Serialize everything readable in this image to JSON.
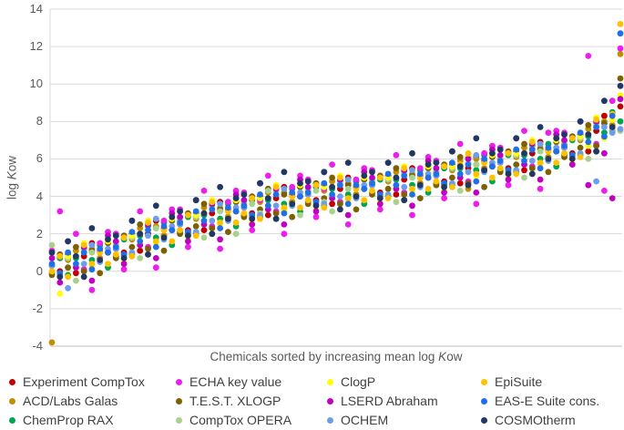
{
  "figure": {
    "ylabel": {
      "prefix": "log ",
      "italic": "K",
      "suffix": "ow"
    },
    "xlabel": {
      "prefix": "Chemicals sorted by increasing mean log ",
      "italic": "K",
      "suffix": "ow"
    }
  },
  "chart_data": {
    "type": "scatter",
    "title": "",
    "xlabel": "Chemicals sorted by increasing mean log Kow",
    "ylabel": "log Kow",
    "ylim": [
      -4,
      14
    ],
    "yticks": [
      14,
      12,
      10,
      8,
      6,
      4,
      2,
      0,
      -2,
      -4
    ],
    "x_count": 72,
    "grid": "horizontal",
    "legend_position": "bottom",
    "legend_ncol": 4,
    "marker": "circle",
    "series": [
      {
        "name": "Experiment CompTox",
        "color": "#C00000",
        "y": [
          0.3,
          0.0,
          0.9,
          -0.1,
          0.8,
          1.5,
          0.7,
          1.0,
          1.2,
          1.0,
          2.0,
          1.1,
          2.0,
          2.7,
          1.9,
          2.2,
          2.5,
          2.2,
          3.1,
          2.2,
          3.1,
          3.7,
          2.9,
          3.2,
          3.4,
          3.1,
          4.0,
          3.0,
          3.9,
          4.5,
          3.7,
          4.0,
          4.1,
          3.8,
          4.6,
          3.6,
          4.4,
          5.0,
          4.1,
          4.4,
          4.6,
          4.2,
          5.1,
          4.1,
          4.9,
          5.5,
          4.7,
          5.0,
          5.1,
          4.8,
          5.7,
          4.7,
          5.5,
          6.1,
          5.4,
          5.6,
          5.8,
          5.5,
          6.4,
          5.4,
          6.3,
          6.9,
          6.1,
          6.4,
          6.6,
          6.3,
          7.3,
          6.4,
          7.5,
          8.3,
          7.8,
          8.8
        ]
      },
      {
        "name": "ACD/Labs Galas",
        "color": "#BF8F00",
        "y": [
          -3.8,
          -0.2,
          0.6,
          1.1,
          -0.3,
          1.2,
          0.7,
          1.0,
          1.4,
          0.8,
          1.7,
          2.3,
          0.9,
          2.4,
          1.9,
          2.2,
          2.7,
          2.0,
          2.8,
          3.4,
          2.0,
          3.4,
          2.9,
          3.2,
          3.6,
          2.9,
          3.7,
          4.2,
          2.8,
          4.2,
          3.7,
          4.0,
          4.3,
          3.6,
          4.3,
          4.8,
          3.3,
          4.7,
          4.1,
          4.4,
          4.8,
          4.0,
          4.8,
          5.3,
          3.8,
          5.2,
          4.7,
          5.0,
          5.3,
          4.6,
          5.4,
          5.9,
          4.4,
          6.0,
          5.5,
          5.6,
          6.0,
          5.3,
          6.1,
          6.6,
          5.2,
          6.6,
          6.1,
          6.4,
          6.8,
          6.1,
          7.0,
          7.6,
          6.4,
          8.0,
          7.8,
          11.6
        ]
      },
      {
        "name": "ChemProp RAX",
        "color": "#00A550",
        "y": [
          -0.1,
          0.7,
          -0.2,
          0.7,
          1.2,
          0.6,
          1.4,
          0.2,
          0.8,
          1.7,
          0.9,
          1.9,
          2.4,
          1.8,
          2.6,
          1.4,
          2.1,
          2.9,
          2.0,
          3.0,
          3.5,
          2.8,
          3.6,
          2.4,
          3.0,
          3.8,
          2.9,
          3.8,
          4.3,
          3.6,
          4.4,
          3.2,
          3.7,
          4.5,
          3.5,
          4.4,
          4.8,
          4.1,
          4.8,
          3.6,
          4.2,
          4.9,
          4.0,
          4.9,
          5.3,
          4.6,
          5.4,
          4.2,
          4.7,
          5.5,
          4.6,
          5.5,
          6.1,
          5.4,
          6.2,
          4.8,
          5.4,
          6.2,
          5.3,
          6.2,
          6.7,
          6.0,
          6.8,
          5.6,
          6.2,
          7.0,
          6.2,
          7.2,
          7.9,
          7.4,
          8.5,
          8.0
        ]
      },
      {
        "name": "ECHA key value",
        "color": "#EB1EEB",
        "y": [
          1.1,
          3.2,
          0.7,
          2.0,
          0.1,
          -1.0,
          1.5,
          2.1,
          2.0,
          0.1,
          1.8,
          3.2,
          1.3,
          0.2,
          2.7,
          3.3,
          3.3,
          1.3,
          2.9,
          4.3,
          2.4,
          1.2,
          3.7,
          4.3,
          4.2,
          2.2,
          3.8,
          5.1,
          3.2,
          2.0,
          4.5,
          5.1,
          4.9,
          2.9,
          4.4,
          5.7,
          3.7,
          2.5,
          4.9,
          5.5,
          5.4,
          3.3,
          4.9,
          6.2,
          4.2,
          3.0,
          5.5,
          6.1,
          5.9,
          3.9,
          5.5,
          6.8,
          4.8,
          3.6,
          6.3,
          6.7,
          6.6,
          4.6,
          6.2,
          7.5,
          5.6,
          4.4,
          7.4,
          7.5,
          7.4,
          7.2,
          7.1,
          11.5,
          6.8,
          4.3,
          9.1,
          11.9
        ]
      },
      {
        "name": "T.E.S.T. XLOGP",
        "color": "#7F6000",
        "y": [
          -0.2,
          0.9,
          0.2,
          1.3,
          0.0,
          1.1,
          -0.1,
          1.5,
          0.7,
          1.9,
          1.3,
          2.5,
          1.2,
          2.3,
          1.1,
          2.7,
          2.0,
          3.1,
          2.4,
          3.6,
          2.3,
          3.3,
          2.1,
          3.7,
          2.9,
          4.0,
          3.3,
          4.4,
          3.1,
          4.1,
          2.9,
          4.5,
          3.6,
          4.7,
          3.9,
          5.0,
          3.6,
          4.6,
          3.3,
          4.9,
          4.1,
          5.1,
          4.4,
          5.5,
          4.1,
          5.1,
          3.9,
          5.5,
          4.6,
          5.7,
          5.0,
          6.1,
          4.7,
          5.7,
          4.5,
          6.1,
          5.3,
          6.4,
          5.7,
          6.8,
          5.5,
          6.5,
          5.3,
          6.9,
          6.1,
          7.2,
          6.6,
          7.8,
          6.7,
          7.9,
          7.5,
          10.3
        ]
      },
      {
        "name": "CompTox OPERA",
        "color": "#A9D18E",
        "y": [
          1.4,
          -0.3,
          0.7,
          -0.5,
          1.1,
          1.0,
          0.5,
          1.7,
          1.5,
          0.7,
          1.8,
          0.7,
          2.6,
          2.3,
          1.7,
          2.9,
          2.8,
          1.9,
          2.9,
          1.8,
          3.4,
          3.2,
          2.7,
          2.0,
          3.7,
          3.6,
          3.1,
          4.3,
          4.3,
          3.2,
          4.1,
          3.0,
          4.4,
          4.3,
          3.7,
          3.2,
          4.7,
          4.4,
          3.9,
          5.1,
          4.9,
          3.9,
          4.9,
          3.7,
          5.2,
          5.0,
          4.5,
          5.7,
          5.4,
          4.5,
          5.5,
          4.3,
          5.8,
          5.7,
          5.3,
          6.3,
          6.1,
          5.2,
          6.2,
          5.0,
          6.6,
          6.4,
          5.9,
          7.1,
          6.9,
          6.0,
          7.1,
          6.0,
          7.8,
          7.1,
          7.6,
          7.5
        ]
      },
      {
        "name": "ClogP",
        "color": "#FFFF00",
        "y": [
          0.4,
          -1.2,
          0.8,
          0.2,
          1.5,
          0.3,
          1.0,
          1.6,
          1.3,
          0.5,
          1.9,
          1.4,
          2.7,
          1.5,
          2.2,
          2.8,
          2.6,
          1.7,
          3.0,
          2.5,
          3.8,
          2.5,
          3.2,
          3.8,
          3.5,
          2.6,
          3.9,
          3.3,
          4.6,
          3.3,
          4.0,
          4.6,
          4.2,
          3.3,
          4.5,
          3.9,
          5.1,
          3.8,
          4.4,
          5.0,
          4.7,
          3.7,
          5.0,
          4.4,
          5.6,
          4.3,
          5.0,
          5.6,
          5.2,
          4.3,
          5.6,
          5.0,
          6.2,
          5.1,
          5.8,
          6.2,
          5.9,
          5.0,
          6.3,
          5.7,
          7.0,
          5.7,
          6.4,
          7.0,
          6.7,
          5.8,
          7.2,
          6.7,
          8.2,
          7.1,
          8.1,
          9.4
        ]
      },
      {
        "name": "LSERD Abraham",
        "color": "#C000C0",
        "y": [
          0.7,
          -0.6,
          1.6,
          0.2,
          1.3,
          -0.5,
          1.1,
          1.9,
          1.6,
          0.4,
          2.7,
          1.4,
          2.5,
          0.7,
          2.3,
          3.1,
          2.9,
          1.6,
          3.8,
          2.5,
          3.6,
          1.7,
          3.3,
          4.1,
          3.8,
          2.5,
          4.7,
          3.3,
          4.4,
          2.5,
          4.1,
          4.9,
          4.5,
          3.2,
          5.3,
          3.9,
          4.9,
          3.0,
          4.5,
          5.3,
          5.0,
          3.6,
          5.8,
          4.4,
          5.4,
          3.5,
          5.1,
          5.9,
          5.5,
          4.2,
          6.4,
          5.0,
          6.0,
          4.2,
          5.9,
          6.5,
          6.2,
          4.9,
          7.1,
          5.7,
          6.8,
          4.9,
          6.5,
          7.3,
          7.0,
          5.7,
          8.0,
          4.6,
          8.0,
          6.3,
          3.9,
          9.2
        ]
      },
      {
        "name": "OCHEM",
        "color": "#6D9EEB",
        "y": [
          0.3,
          0.8,
          -0.9,
          0.8,
          0.4,
          1.4,
          0.5,
          1.2,
          1.2,
          1.8,
          1.0,
          2.0,
          1.9,
          2.8,
          1.7,
          2.4,
          2.5,
          3.0,
          2.1,
          3.1,
          2.7,
          3.6,
          2.7,
          3.4,
          3.4,
          3.9,
          3.0,
          3.9,
          3.5,
          4.4,
          3.5,
          4.2,
          4.1,
          4.6,
          3.6,
          4.5,
          4.0,
          4.9,
          3.9,
          4.6,
          4.6,
          5.0,
          4.1,
          5.0,
          4.5,
          5.4,
          4.5,
          5.2,
          5.1,
          5.6,
          4.7,
          5.6,
          5.3,
          6.2,
          5.3,
          5.8,
          5.8,
          6.3,
          5.4,
          6.3,
          5.9,
          6.8,
          5.9,
          6.6,
          6.6,
          7.1,
          6.3,
          7.3,
          4.8,
          7.7,
          7.4,
          7.6
        ]
      },
      {
        "name": "EpiSuite",
        "color": "#FFC000",
        "y": [
          0.0,
          0.8,
          -0.3,
          0.8,
          1.4,
          0.4,
          1.0,
          0.4,
          0.9,
          1.8,
          0.8,
          2.0,
          2.6,
          1.6,
          2.2,
          1.6,
          2.2,
          3.0,
          1.9,
          3.1,
          3.7,
          2.6,
          3.2,
          2.6,
          3.1,
          3.9,
          2.8,
          3.9,
          4.5,
          3.4,
          4.0,
          3.4,
          3.8,
          4.6,
          3.4,
          4.5,
          5.0,
          3.9,
          4.4,
          3.8,
          4.3,
          5.0,
          3.9,
          5.0,
          5.5,
          4.4,
          5.0,
          4.4,
          4.8,
          5.6,
          4.5,
          5.7,
          6.3,
          5.2,
          5.8,
          5.0,
          5.5,
          6.3,
          5.2,
          6.3,
          6.9,
          5.8,
          6.4,
          5.8,
          6.3,
          7.1,
          6.1,
          7.3,
          8.1,
          7.2,
          8.4,
          13.2
        ]
      },
      {
        "name": "EAS-E Suite cons.",
        "color": "#1E6FE8",
        "y": [
          0.4,
          -0.1,
          1.0,
          0.4,
          1.0,
          0.1,
          1.2,
          1.0,
          1.3,
          0.9,
          2.1,
          1.6,
          2.2,
          1.3,
          2.4,
          2.2,
          2.6,
          2.1,
          3.2,
          2.7,
          3.3,
          2.3,
          3.4,
          3.2,
          3.5,
          3.0,
          4.1,
          3.5,
          4.1,
          3.1,
          4.2,
          4.0,
          4.2,
          3.7,
          4.7,
          4.1,
          4.6,
          3.6,
          4.6,
          4.4,
          4.7,
          4.1,
          5.2,
          4.6,
          5.1,
          4.1,
          5.2,
          5.0,
          5.2,
          4.7,
          5.8,
          5.2,
          5.7,
          4.8,
          6.0,
          5.6,
          5.9,
          5.4,
          6.5,
          5.9,
          6.5,
          5.5,
          6.6,
          6.4,
          6.7,
          6.2,
          7.4,
          6.9,
          7.7,
          7.2,
          8.3,
          12.7
        ]
      },
      {
        "name": "COSMOtherm",
        "color": "#1F3864",
        "y": [
          1.0,
          -0.3,
          1.6,
          0.8,
          -0.3,
          2.3,
          0.6,
          1.7,
          1.9,
          0.7,
          2.7,
          2.0,
          0.9,
          3.5,
          1.8,
          2.9,
          3.2,
          1.9,
          3.8,
          3.1,
          2.0,
          4.5,
          2.8,
          3.9,
          4.1,
          2.8,
          4.7,
          3.9,
          2.8,
          5.3,
          3.6,
          4.7,
          4.8,
          3.5,
          5.3,
          4.5,
          3.3,
          5.8,
          4.0,
          5.1,
          5.3,
          3.9,
          5.8,
          5.0,
          3.8,
          6.3,
          4.6,
          5.7,
          5.8,
          4.5,
          6.4,
          5.6,
          4.6,
          7.1,
          5.4,
          6.3,
          6.5,
          5.2,
          7.1,
          6.3,
          5.2,
          7.7,
          6.0,
          7.1,
          7.3,
          6.0,
          8.0,
          7.3,
          6.4,
          9.1,
          7.7,
          9.9
        ]
      }
    ]
  }
}
